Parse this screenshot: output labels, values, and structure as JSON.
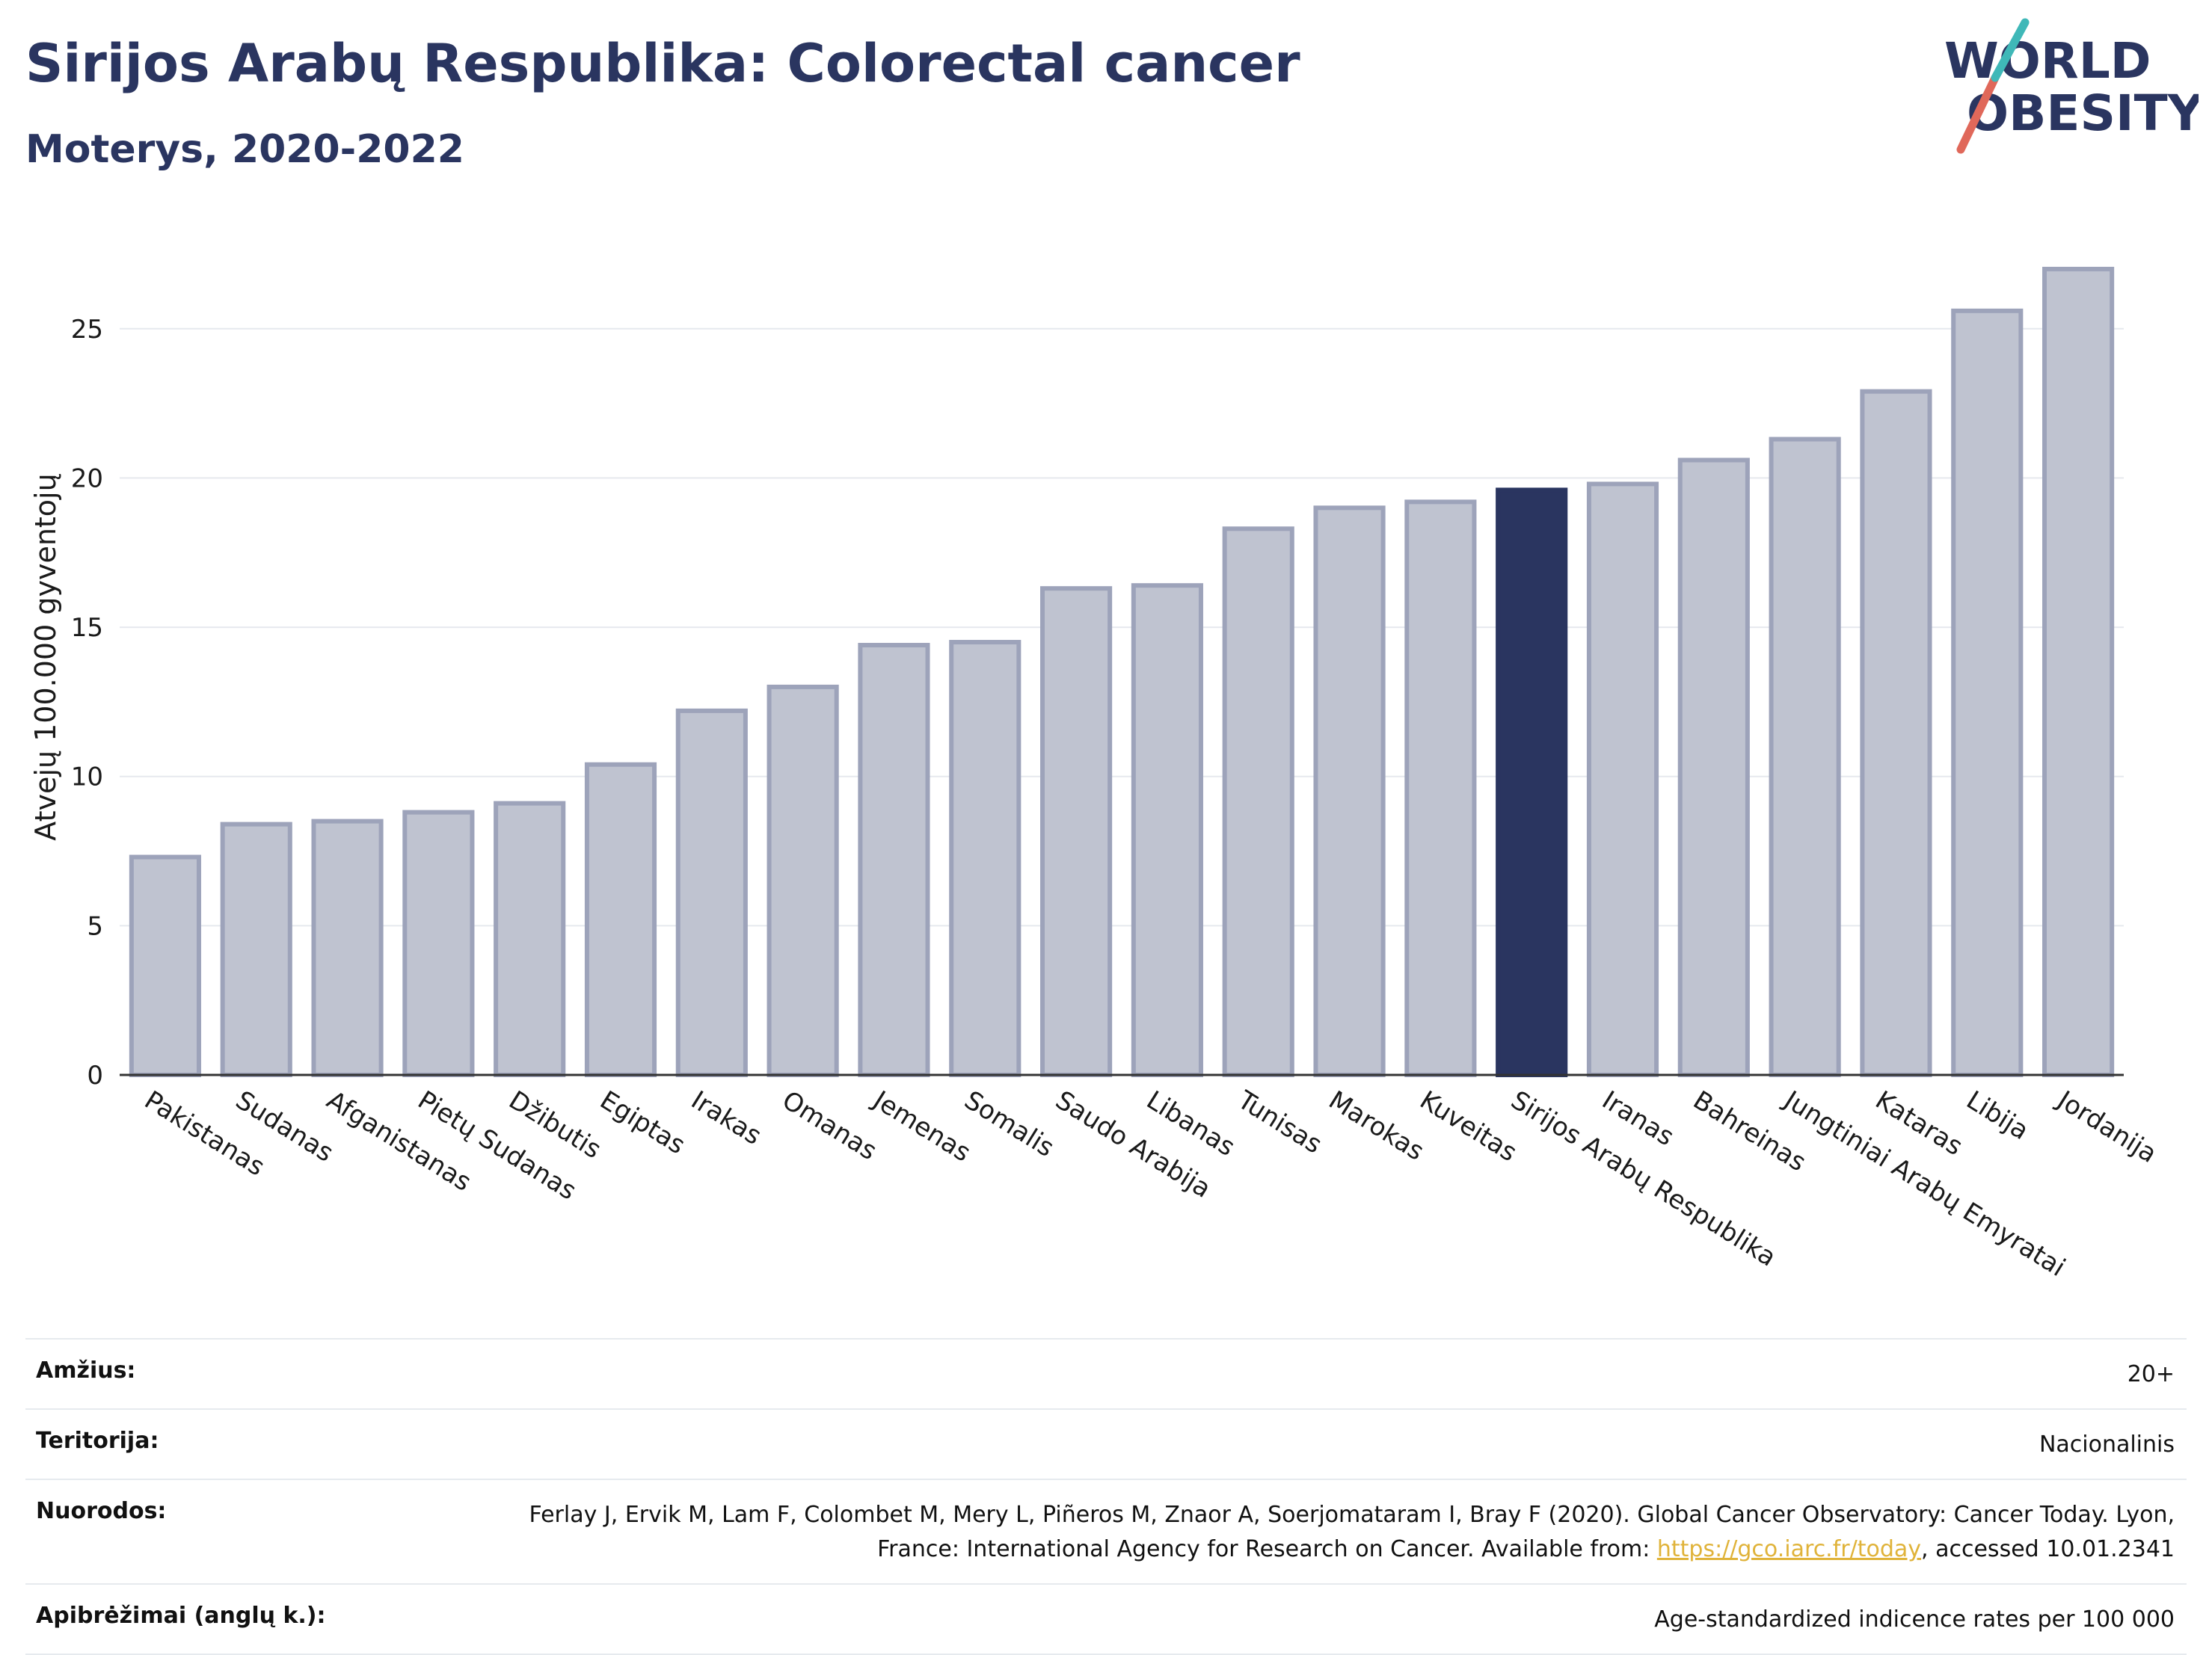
{
  "header": {
    "title": "Sirijos Arabų Respublika: Colorectal cancer",
    "subtitle": "Moterys, 2020-2022"
  },
  "logo": {
    "line1": "WORLD",
    "line2": "OBESITY",
    "colors": {
      "text": "#2a3560",
      "stroke_teal": "#3fb8b8",
      "stroke_coral": "#e0685a"
    }
  },
  "chart_data": {
    "type": "bar",
    "ylabel": "Atvejų 100.000 gyventojų",
    "ylim": [
      0,
      28
    ],
    "yticks": [
      0,
      5,
      10,
      15,
      20,
      25
    ],
    "grid": true,
    "categories": [
      "Pakistanas",
      "Sudanas",
      "Afganistanas",
      "Pietų Sudanas",
      "Džibutis",
      "Egiptas",
      "Irakas",
      "Omanas",
      "Jemenas",
      "Somalis",
      "Saudo Arabija",
      "Libanas",
      "Tunisas",
      "Marokas",
      "Kuveitas",
      "Sirijos Arabų Respublika",
      "Iranas",
      "Bahreinas",
      "Jungtiniai Arabų Emyratai",
      "Kataras",
      "Libija",
      "Jordanija"
    ],
    "values": [
      7.3,
      8.4,
      8.5,
      8.8,
      9.1,
      10.4,
      12.2,
      13.0,
      14.4,
      14.5,
      16.3,
      16.4,
      18.3,
      19.0,
      19.2,
      19.6,
      19.8,
      20.6,
      21.3,
      22.9,
      25.6,
      27.0
    ],
    "highlight": "Sirijos Arabų Respublika",
    "colors": {
      "bar": "#bfc3d0",
      "bar_border": "#9da3ba",
      "highlight": "#2a3560"
    }
  },
  "info": [
    {
      "key": "Amžius:",
      "value": "20+"
    },
    {
      "key": "Teritorija:",
      "value": "Nacionalinis"
    },
    {
      "key": "Nuorodos:",
      "value_pre": "Ferlay J, Ervik M, Lam F, Colombet M, Mery L, Piñeros M, Znaor A, Soerjomataram I, Bray F (2020). Global Cancer Observatory: Cancer Today. Lyon, France: International Agency for Research on Cancer. Available from: ",
      "link": "https://gco.iarc.fr/today",
      "value_post": ", accessed 10.01.2341"
    },
    {
      "key": "Apibrėžimai (anglų k.):",
      "value": "Age-standardized indicence rates per 100 000"
    }
  ]
}
